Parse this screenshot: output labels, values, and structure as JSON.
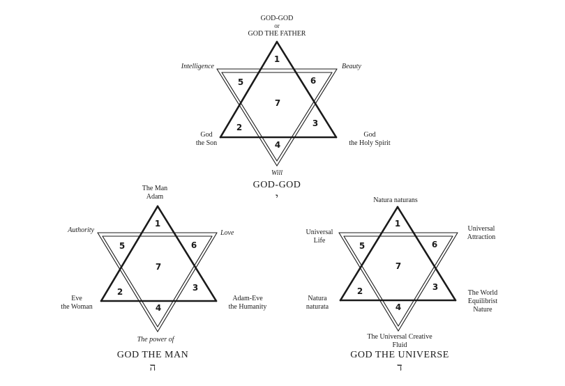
{
  "diagrams": [
    {
      "id": "top",
      "top_lines": [
        "GOD-GOD",
        "or",
        "GOD THE FATHER"
      ],
      "points": {
        "1": "1",
        "2": "2",
        "3": "3",
        "4": "4",
        "5": "5",
        "6": "6",
        "7": "7"
      },
      "upper_left": "Intelligence",
      "upper_right": "Beauty",
      "lower_left": [
        "God",
        "the Son"
      ],
      "lower_right": [
        "God",
        "the Holy Spirit"
      ],
      "bottom_italic": "Will",
      "title": "GOD-GOD",
      "letter": "י"
    },
    {
      "id": "bottom-left",
      "top_lines": [
        "The Man",
        "Adam"
      ],
      "points": {
        "1": "1",
        "2": "2",
        "3": "3",
        "4": "4",
        "5": "5",
        "6": "6",
        "7": "7"
      },
      "upper_left": "Authority",
      "upper_right": "Love",
      "lower_left": [
        "Eve",
        "the Woman"
      ],
      "lower_right": [
        "Adam-Eve",
        "the Humanity"
      ],
      "bottom_italic": "The power of",
      "title": "GOD  THE  MAN",
      "letter": "ה"
    },
    {
      "id": "bottom-right",
      "top_lines": [
        "Natura naturans"
      ],
      "points": {
        "1": "1",
        "2": "2",
        "3": "3",
        "4": "4",
        "5": "5",
        "6": "6",
        "7": "7"
      },
      "upper_left": [
        "Universal",
        "Life"
      ],
      "upper_right": [
        "Universal",
        "Attraction"
      ],
      "lower_left": [
        "Natura",
        "naturata"
      ],
      "lower_right": [
        "The World",
        "Equilibrist",
        "Nature"
      ],
      "bottom_lines": [
        "The Universal Creative",
        "Fluid"
      ],
      "title": "GOD  THE  UNIVERSE",
      "letter": "ד"
    }
  ]
}
